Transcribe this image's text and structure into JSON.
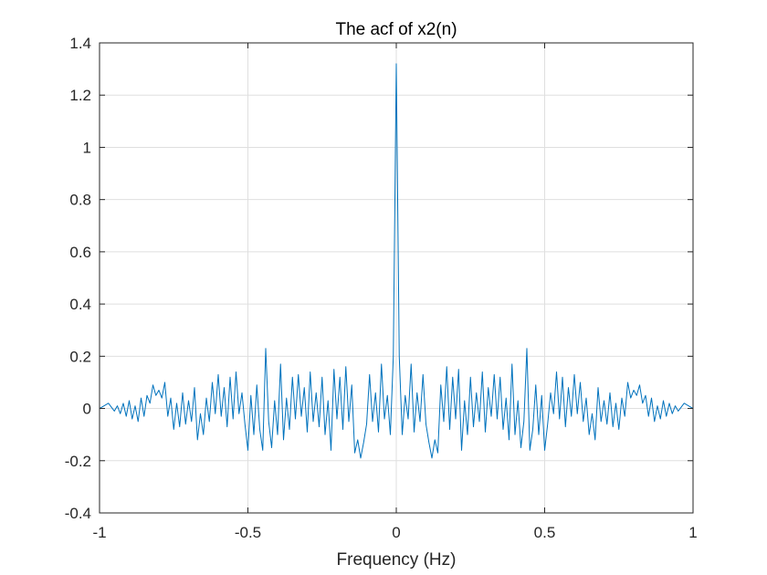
{
  "chart_data": {
    "type": "line",
    "title": "The acf of x2(n)",
    "xlabel": "Frequency (Hz)",
    "ylabel": "",
    "xlim": [
      -1,
      1
    ],
    "ylim": [
      -0.4,
      1.4
    ],
    "xticks": [
      -1,
      -0.5,
      0,
      0.5,
      1
    ],
    "xtick_labels": [
      "-1",
      "-0.5",
      "0",
      "0.5",
      "1"
    ],
    "yticks": [
      -0.4,
      -0.2,
      0,
      0.2,
      0.4,
      0.6,
      0.8,
      1,
      1.2,
      1.4
    ],
    "ytick_labels": [
      "-0.4",
      "-0.2",
      "0",
      "0.2",
      "0.4",
      "0.6",
      "0.8",
      "1",
      "1.2",
      "1.4"
    ],
    "grid": true,
    "line_color": "#0072BD",
    "series": [
      {
        "x": [
          -1,
          -0.97,
          -0.95,
          -0.94,
          -0.93,
          -0.92,
          -0.91,
          -0.9,
          -0.89,
          -0.88,
          -0.87,
          -0.86,
          -0.85,
          -0.84,
          -0.83,
          -0.82,
          -0.81,
          -0.8,
          -0.79,
          -0.78,
          -0.77,
          -0.76,
          -0.75,
          -0.74,
          -0.73,
          -0.72,
          -0.71,
          -0.7,
          -0.69,
          -0.68,
          -0.67,
          -0.66,
          -0.65,
          -0.64,
          -0.63,
          -0.62,
          -0.61,
          -0.6,
          -0.59,
          -0.58,
          -0.57,
          -0.56,
          -0.55,
          -0.54,
          -0.53,
          -0.52,
          -0.51,
          -0.5,
          -0.49,
          -0.48,
          -0.47,
          -0.46,
          -0.45,
          -0.44,
          -0.43,
          -0.42,
          -0.41,
          -0.4,
          -0.39,
          -0.38,
          -0.37,
          -0.36,
          -0.35,
          -0.34,
          -0.33,
          -0.32,
          -0.31,
          -0.3,
          -0.29,
          -0.28,
          -0.27,
          -0.26,
          -0.25,
          -0.24,
          -0.23,
          -0.22,
          -0.21,
          -0.2,
          -0.19,
          -0.18,
          -0.17,
          -0.16,
          -0.15,
          -0.14,
          -0.13,
          -0.12,
          -0.11,
          -0.1,
          -0.09,
          -0.08,
          -0.07,
          -0.06,
          -0.05,
          -0.04,
          -0.03,
          -0.02,
          -0.01,
          0,
          0.01,
          0.02,
          0.03,
          0.04,
          0.05,
          0.06,
          0.07,
          0.08,
          0.09,
          0.1,
          0.11,
          0.12,
          0.13,
          0.14,
          0.15,
          0.16,
          0.17,
          0.18,
          0.19,
          0.2,
          0.21,
          0.22,
          0.23,
          0.24,
          0.25,
          0.26,
          0.27,
          0.28,
          0.29,
          0.3,
          0.31,
          0.32,
          0.33,
          0.34,
          0.35,
          0.36,
          0.37,
          0.38,
          0.39,
          0.4,
          0.41,
          0.42,
          0.43,
          0.44,
          0.45,
          0.46,
          0.47,
          0.48,
          0.49,
          0.5,
          0.51,
          0.52,
          0.53,
          0.54,
          0.55,
          0.56,
          0.57,
          0.58,
          0.59,
          0.6,
          0.61,
          0.62,
          0.63,
          0.64,
          0.65,
          0.66,
          0.67,
          0.68,
          0.69,
          0.7,
          0.71,
          0.72,
          0.73,
          0.74,
          0.75,
          0.76,
          0.77,
          0.78,
          0.79,
          0.8,
          0.81,
          0.82,
          0.83,
          0.84,
          0.85,
          0.86,
          0.87,
          0.88,
          0.89,
          0.9,
          0.91,
          0.92,
          0.93,
          0.94,
          0.95,
          0.97,
          1
        ],
        "y": [
          0,
          0.02,
          -0.01,
          0.01,
          -0.02,
          0.02,
          -0.03,
          0.03,
          -0.04,
          0.01,
          -0.05,
          0.04,
          -0.03,
          0.05,
          0.02,
          0.09,
          0.05,
          0.07,
          0.04,
          0.1,
          -0.03,
          0.04,
          -0.08,
          0.02,
          -0.07,
          0.06,
          -0.06,
          0.03,
          -0.05,
          0.08,
          -0.12,
          -0.02,
          -0.1,
          0.04,
          -0.05,
          0.1,
          -0.02,
          0.13,
          -0.03,
          0.08,
          -0.07,
          0.12,
          -0.04,
          0.14,
          -0.02,
          0.06,
          -0.06,
          -0.16,
          0.05,
          -0.1,
          0.09,
          -0.08,
          -0.16,
          0.23,
          -0.05,
          -0.15,
          0.03,
          -0.1,
          0.17,
          -0.12,
          0.04,
          -0.08,
          0.12,
          -0.04,
          0.13,
          -0.03,
          0.08,
          -0.09,
          0.14,
          -0.05,
          0.06,
          -0.07,
          0.12,
          -0.1,
          0.03,
          -0.16,
          0.15,
          -0.04,
          0.12,
          -0.08,
          0.16,
          -0.05,
          0.09,
          -0.17,
          -0.12,
          -0.19,
          -0.13,
          -0.06,
          0.13,
          -0.05,
          0.06,
          -0.09,
          0.17,
          -0.04,
          0.05,
          -0.1,
          0.2,
          1.32,
          0.2,
          -0.1,
          0.05,
          -0.04,
          0.17,
          -0.09,
          0.06,
          -0.05,
          0.13,
          -0.06,
          -0.13,
          -0.19,
          -0.12,
          -0.17,
          0.09,
          -0.05,
          0.16,
          -0.08,
          0.12,
          -0.04,
          0.15,
          -0.16,
          0.03,
          -0.1,
          0.12,
          -0.07,
          0.06,
          -0.05,
          0.14,
          -0.09,
          0.08,
          -0.03,
          0.13,
          -0.04,
          0.12,
          -0.08,
          0.04,
          -0.12,
          0.17,
          -0.1,
          0.03,
          -0.15,
          -0.05,
          0.23,
          -0.16,
          -0.08,
          0.09,
          -0.1,
          0.05,
          -0.16,
          -0.06,
          0.06,
          -0.02,
          0.14,
          -0.04,
          0.12,
          -0.07,
          0.08,
          -0.03,
          0.13,
          -0.02,
          0.1,
          -0.05,
          0.04,
          -0.1,
          -0.02,
          -0.12,
          0.08,
          -0.05,
          0.03,
          -0.06,
          0.06,
          -0.07,
          0.02,
          -0.08,
          0.04,
          -0.03,
          0.1,
          0.04,
          0.07,
          0.05,
          0.09,
          0.02,
          0.05,
          -0.03,
          0.04,
          -0.05,
          0.01,
          -0.04,
          0.03,
          -0.03,
          0.02,
          -0.02,
          0.01,
          -0.01,
          0.02,
          0
        ]
      }
    ]
  }
}
